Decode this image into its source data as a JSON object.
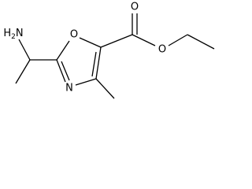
{
  "labels": {
    "amine": [
      "H",
      "2",
      "N"
    ],
    "ring_oxygen": "O",
    "ring_nitrogen": "N",
    "carbonyl_oxygen": "O",
    "ester_oxygen": "O"
  }
}
